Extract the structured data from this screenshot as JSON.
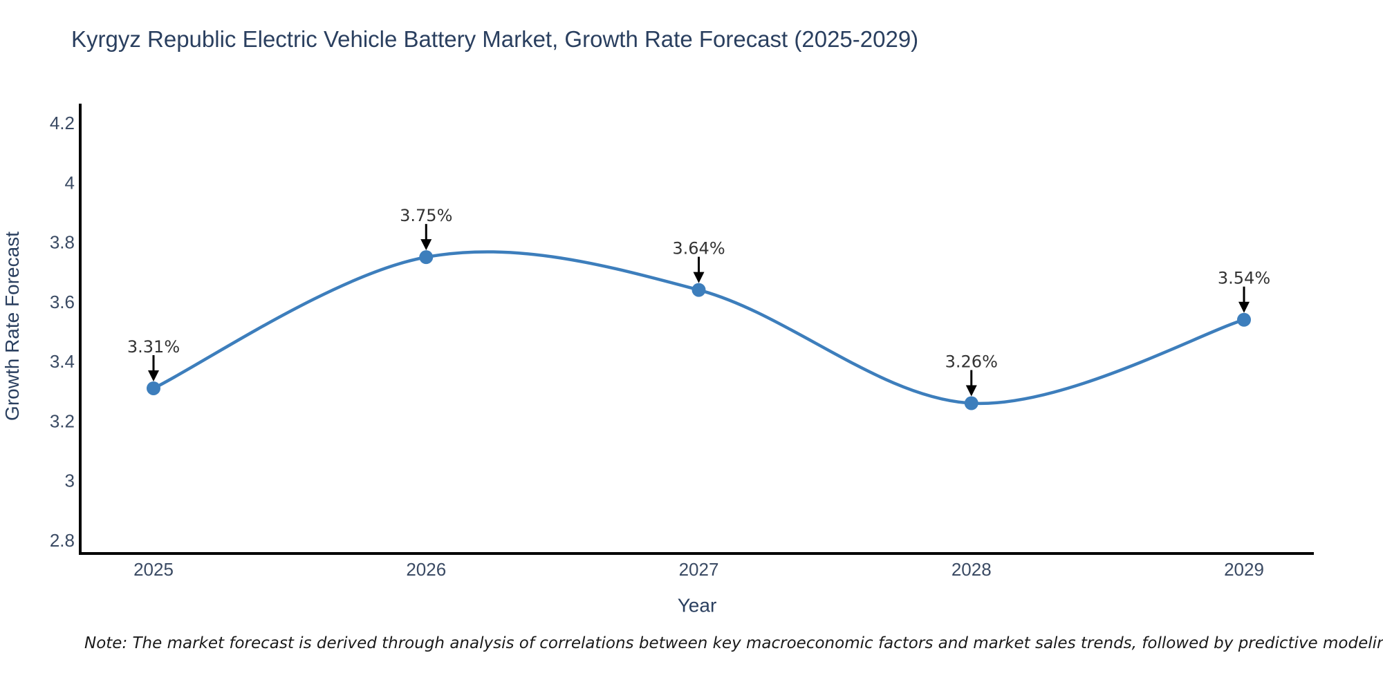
{
  "title": "Kyrgyz Republic Electric Vehicle Battery Market, Growth Rate Forecast (2025-2029)",
  "note": "Note: The market forecast is derived through analysis of correlations between key macroeconomic factors and market sales trends, followed by predictive modeling to project future sales",
  "chart_data": {
    "type": "line",
    "line_shape": "spline",
    "title": "Kyrgyz Republic Electric Vehicle Battery Market, Growth Rate Forecast (2025-2029)",
    "xlabel": "Year",
    "ylabel": "Growth Rate Forecast",
    "x": [
      2025,
      2026,
      2027,
      2028,
      2029
    ],
    "values": [
      3.31,
      3.75,
      3.64,
      3.26,
      3.54
    ],
    "point_labels": [
      "3.31%",
      "3.75%",
      "3.64%",
      "3.26%",
      "3.54%"
    ],
    "xtick_labels": [
      "2025",
      "2026",
      "2027",
      "2028",
      "2029"
    ],
    "ytick_labels": [
      "2.8",
      "3",
      "3.2",
      "3.4",
      "3.6",
      "3.8",
      "4",
      "4.2"
    ],
    "yticks": [
      2.8,
      3.0,
      3.2,
      3.4,
      3.6,
      3.8,
      4.0,
      4.2
    ],
    "ylim": [
      2.8,
      4.2
    ],
    "grid": false,
    "legend_position": "none",
    "markers": true,
    "annotations_have_arrows": true,
    "colors": {
      "line": "#3d7ebc",
      "marker": "#3d7ebc",
      "axis_line": "#000000",
      "arrow": "#000000",
      "tick_text": "#3a4a63",
      "axis_title_text": "#2a3f5f",
      "chart_title_text": "#2a3f5f",
      "annotation_text": "#333333",
      "note_text": "#1a1a1a",
      "background": "#ffffff"
    }
  }
}
